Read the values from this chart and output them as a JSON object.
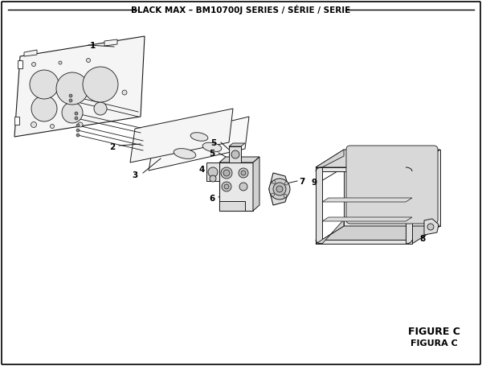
{
  "title": "BLACK MAX – BM10700J SERIES / SÉRIE / SERIE",
  "figure_label": "FIGURE C",
  "figura_label": "FIGURA C",
  "bg_color": "#ffffff",
  "lc": "#1a1a1a",
  "lw_main": 0.8,
  "lw_thin": 0.5
}
